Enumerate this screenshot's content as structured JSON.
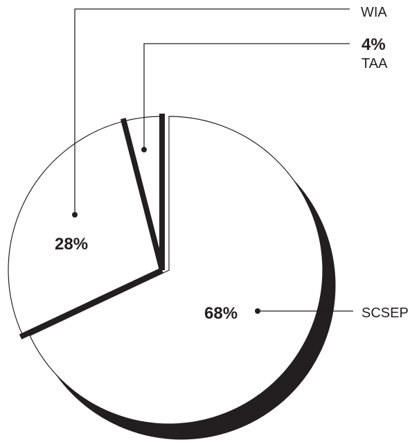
{
  "chart_data": {
    "type": "pie",
    "title": "",
    "slices": [
      {
        "label": "SCSEP",
        "pct_label": "68%",
        "value": 68
      },
      {
        "label": "WIA",
        "pct_label": "28%",
        "value": 28
      },
      {
        "label": "TAA",
        "pct_label": "4%",
        "value": 4
      }
    ],
    "exploded_slice": "SCSEP",
    "style": "black-and-white with 3D shadow"
  },
  "colors": {
    "ink": "#231f20",
    "fill": "#ffffff"
  }
}
